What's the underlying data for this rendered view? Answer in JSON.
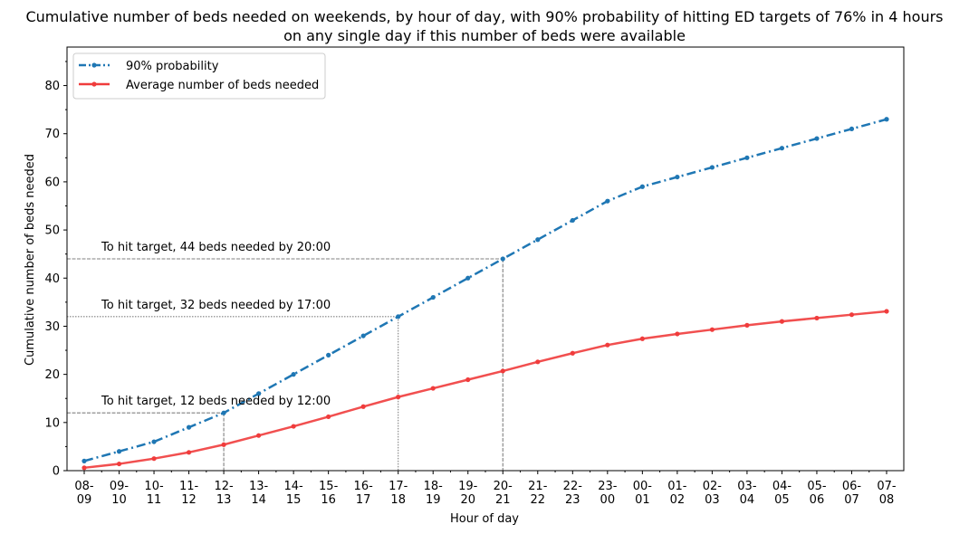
{
  "chart_data": {
    "type": "line",
    "title": "Cumulative number of beds needed on weekends, by hour of day, with 90% probability of hitting ED targets of 76% in 4 hours",
    "subtitle": "on any single day if this number of beds were available",
    "xlabel": "Hour of day",
    "ylabel": "Cumulative number of beds needed",
    "ylim": [
      0,
      88
    ],
    "yticks": [
      0,
      10,
      20,
      30,
      40,
      50,
      60,
      70,
      80
    ],
    "grid": false,
    "legend_position": "top-left",
    "categories": [
      [
        "08-",
        "09"
      ],
      [
        "09-",
        "10"
      ],
      [
        "10-",
        "11"
      ],
      [
        "11-",
        "12"
      ],
      [
        "12-",
        "13"
      ],
      [
        "13-",
        "14"
      ],
      [
        "14-",
        "15"
      ],
      [
        "15-",
        "16"
      ],
      [
        "16-",
        "17"
      ],
      [
        "17-",
        "18"
      ],
      [
        "18-",
        "19"
      ],
      [
        "19-",
        "20"
      ],
      [
        "20-",
        "21"
      ],
      [
        "21-",
        "22"
      ],
      [
        "22-",
        "23"
      ],
      [
        "23-",
        "00"
      ],
      [
        "00-",
        "01"
      ],
      [
        "01-",
        "02"
      ],
      [
        "02-",
        "03"
      ],
      [
        "03-",
        "04"
      ],
      [
        "04-",
        "05"
      ],
      [
        "05-",
        "06"
      ],
      [
        "06-",
        "07"
      ],
      [
        "07-",
        "08"
      ]
    ],
    "series": [
      {
        "name": "90% probability",
        "color": "#1f77b4",
        "style": "dashdot",
        "values": [
          2,
          4,
          6,
          9,
          12,
          16,
          20,
          24,
          28,
          32,
          36,
          40,
          44,
          48,
          52,
          56,
          59,
          61,
          63,
          65,
          67,
          69,
          71,
          73
        ]
      },
      {
        "name": "Average number of beds needed",
        "color": "#f03c3c",
        "style": "solid",
        "values": [
          0.6,
          1.4,
          2.5,
          3.8,
          5.4,
          7.3,
          9.2,
          11.2,
          13.3,
          15.3,
          17.1,
          18.9,
          20.7,
          22.6,
          24.4,
          26.1,
          27.4,
          28.4,
          29.3,
          30.2,
          31.0,
          31.7,
          32.4,
          33.1
        ]
      }
    ],
    "annotations": [
      {
        "text": "To hit target, 12 beds needed by 12:00",
        "x_index": 4,
        "y": 12,
        "line_style": "dashed"
      },
      {
        "text": "To hit target, 32 beds needed by 17:00",
        "x_index": 9,
        "y": 32,
        "line_style": "dotted"
      },
      {
        "text": "To hit target, 44 beds needed by 20:00",
        "x_index": 12,
        "y": 44,
        "line_style": "dashed"
      }
    ]
  }
}
